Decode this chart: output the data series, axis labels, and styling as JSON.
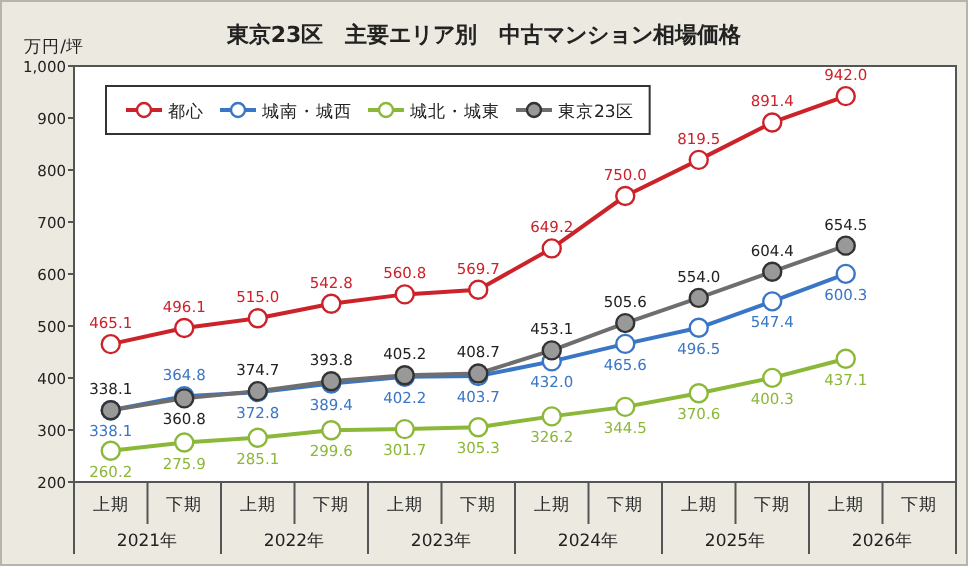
{
  "chart_data": {
    "type": "line",
    "title": "東京23区　主要エリア別　中古マンション相場価格",
    "ylabel": "万円/坪",
    "categories": [
      "上期",
      "下期",
      "上期",
      "下期",
      "上期",
      "下期",
      "上期",
      "下期",
      "上期",
      "下期",
      "上期",
      "下期"
    ],
    "annotations": [
      "2021年",
      "2022年",
      "2023年",
      "2024年",
      "2025年",
      "2026年"
    ],
    "series": [
      {
        "name": "都心",
        "color": "#cc2229",
        "values": [
          465.1,
          496.1,
          515.0,
          542.8,
          560.8,
          569.7,
          649.2,
          750.0,
          819.5,
          891.4,
          942.0,
          null
        ],
        "value_labels": [
          "465.1",
          "496.1",
          "515.0",
          "542.8",
          "560.8",
          "569.7",
          "649.2",
          "750.0",
          "819.5",
          "891.4",
          "942.0",
          null
        ]
      },
      {
        "name": "城南・城西",
        "color": "#3a76c6",
        "values": [
          338.1,
          364.8,
          372.8,
          389.4,
          402.2,
          403.7,
          432.0,
          465.6,
          496.5,
          547.4,
          600.3,
          null
        ],
        "value_labels": [
          "338.1",
          "364.8",
          "372.8",
          "389.4",
          "402.2",
          "403.7",
          "432.0",
          "465.6",
          "496.5",
          "547.4",
          "600.3",
          null
        ]
      },
      {
        "name": "城北・城東",
        "color": "#8cb83a",
        "values": [
          260.2,
          275.9,
          285.1,
          299.6,
          301.7,
          305.3,
          326.2,
          344.5,
          370.6,
          400.3,
          437.1,
          null
        ],
        "value_labels": [
          "260.2",
          "275.9",
          "285.1",
          "299.6",
          "301.7",
          "305.3",
          "326.2",
          "344.5",
          "370.6",
          "400.3",
          "437.1",
          null
        ]
      },
      {
        "name": "東京23区",
        "color": "#6e6e6e",
        "values": [
          338.1,
          360.8,
          374.7,
          393.8,
          405.2,
          408.7,
          453.1,
          505.6,
          554.0,
          604.4,
          654.5,
          null
        ],
        "value_labels": [
          "338.1",
          "360.8",
          "374.7",
          "393.8",
          "405.2",
          "408.7",
          "453.1",
          "505.6",
          "554.0",
          "604.4",
          "654.5",
          null
        ]
      }
    ],
    "ylim": [
      200,
      1000
    ],
    "yticks": [
      200,
      300,
      400,
      500,
      600,
      700,
      800,
      900,
      {
        "value": 1000,
        "label": "1,000"
      }
    ],
    "grid": false,
    "legend": "top left",
    "marker": "circle",
    "line_style": "solid"
  }
}
